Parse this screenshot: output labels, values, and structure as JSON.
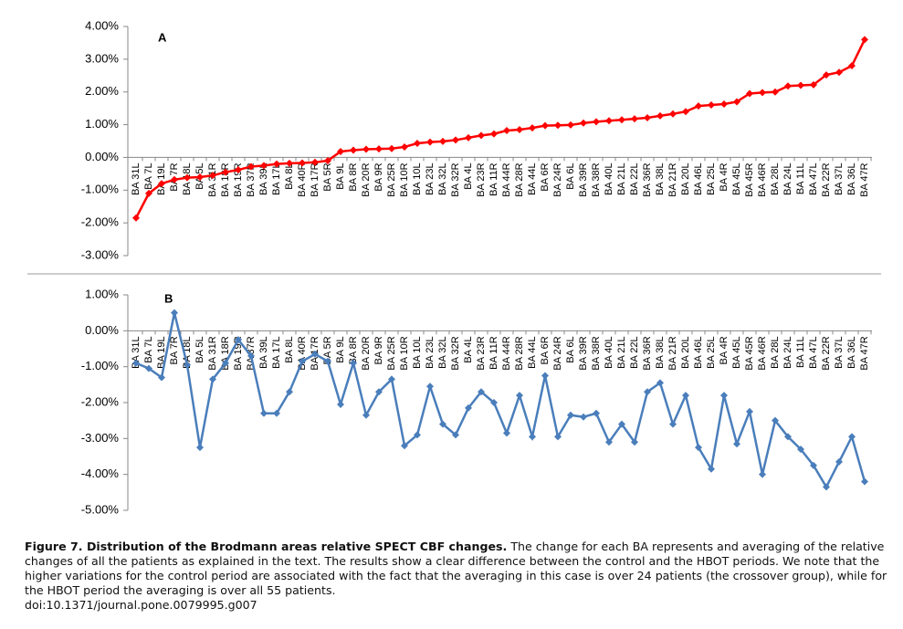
{
  "chart_data": [
    {
      "type": "line",
      "panel_label": "A",
      "color": "#ff0000",
      "categories": [
        "BA 31L",
        "BA 7L",
        "BA 19L",
        "BA 7R",
        "BA 18L",
        "BA 5L",
        "BA 31R",
        "BA 18R",
        "BA 19R",
        "BA 37R",
        "BA 39L",
        "BA 17L",
        "BA 8L",
        "BA 40R",
        "BA 17R",
        "BA 5R",
        "BA 9L",
        "BA 8R",
        "BA 20R",
        "BA 9R",
        "BA 25R",
        "BA 10R",
        "BA 10L",
        "BA 23L",
        "BA 32L",
        "BA 32R",
        "BA 4L",
        "BA 23R",
        "BA 11R",
        "BA 44R",
        "BA 28R",
        "BA 44L",
        "BA 6R",
        "BA 24R",
        "BA 6L",
        "BA 39R",
        "BA 38R",
        "BA 40L",
        "BA 21L",
        "BA 22L",
        "BA 36R",
        "BA 38L",
        "BA 21R",
        "BA 20L",
        "BA 46L",
        "BA 25L",
        "BA 4R",
        "BA 45L",
        "BA 45R",
        "BA 46R",
        "BA 28L",
        "BA 24L",
        "BA 11L",
        "BA 47L",
        "BA 22R",
        "BA 37L",
        "BA 36L",
        "BA 47R"
      ],
      "values": [
        -1.85,
        -1.1,
        -0.8,
        -0.68,
        -0.62,
        -0.6,
        -0.55,
        -0.45,
        -0.38,
        -0.28,
        -0.25,
        -0.2,
        -0.18,
        -0.17,
        -0.15,
        -0.1,
        0.18,
        0.22,
        0.25,
        0.26,
        0.27,
        0.32,
        0.43,
        0.47,
        0.49,
        0.53,
        0.6,
        0.67,
        0.72,
        0.82,
        0.85,
        0.9,
        0.97,
        0.98,
        0.99,
        1.05,
        1.09,
        1.12,
        1.15,
        1.18,
        1.21,
        1.27,
        1.33,
        1.4,
        1.57,
        1.6,
        1.63,
        1.7,
        1.95,
        1.98,
        2.0,
        2.18,
        2.2,
        2.22,
        2.52,
        2.6,
        2.8,
        3.6
      ],
      "ylim": [
        -3,
        4
      ],
      "yticks": [
        {
          "value": 4,
          "label": "4.00%"
        },
        {
          "value": 3,
          "label": "3.00%"
        },
        {
          "value": 2,
          "label": "2.00%"
        },
        {
          "value": 1,
          "label": "1.00%"
        },
        {
          "value": 0,
          "label": "0.00%"
        },
        {
          "value": -1,
          "label": "-1.00%"
        },
        {
          "value": -2,
          "label": "-2.00%"
        },
        {
          "value": -3,
          "label": "-3.00%"
        }
      ]
    },
    {
      "type": "line",
      "panel_label": "B",
      "color": "#4a7ebb",
      "categories": [
        "BA 31L",
        "BA 7L",
        "BA 19L",
        "BA 7R",
        "BA 18L",
        "BA 5L",
        "BA 31R",
        "BA 18R",
        "BA 19R",
        "BA 37R",
        "BA 39L",
        "BA 17L",
        "BA 8L",
        "BA 40R",
        "BA 17R",
        "BA 5R",
        "BA 9L",
        "BA 8R",
        "BA 20R",
        "BA 9R",
        "BA 25R",
        "BA 10R",
        "BA 10L",
        "BA 23L",
        "BA 32L",
        "BA 32R",
        "BA 4L",
        "BA 23R",
        "BA 11R",
        "BA 44R",
        "BA 28R",
        "BA 44L",
        "BA 6R",
        "BA 24R",
        "BA 6L",
        "BA 39R",
        "BA 38R",
        "BA 40L",
        "BA 21L",
        "BA 22L",
        "BA 36R",
        "BA 38L",
        "BA 21R",
        "BA 20L",
        "BA 46L",
        "BA 25L",
        "BA 4R",
        "BA 45L",
        "BA 45R",
        "BA 46R",
        "BA 28L",
        "BA 24L",
        "BA 11L",
        "BA 47L",
        "BA 22R",
        "BA 37L",
        "BA 36L",
        "BA 47R"
      ],
      "values": [
        -0.9,
        -1.05,
        -1.3,
        0.5,
        -0.95,
        -3.25,
        -1.35,
        -0.9,
        -0.25,
        -0.7,
        -2.3,
        -2.3,
        -1.7,
        -0.85,
        -0.65,
        -0.85,
        -2.05,
        -0.9,
        -2.35,
        -1.7,
        -1.35,
        -3.2,
        -2.9,
        -1.55,
        -2.6,
        -2.9,
        -2.15,
        -1.7,
        -2.0,
        -2.85,
        -1.8,
        -2.95,
        -1.25,
        -2.95,
        -2.35,
        -2.4,
        -2.3,
        -3.1,
        -2.6,
        -3.1,
        -1.7,
        -1.45,
        -2.6,
        -1.8,
        -3.25,
        -3.85,
        -1.8,
        -3.15,
        -2.25,
        -4.0,
        -2.5,
        -2.95,
        -3.3,
        -3.75,
        -4.35,
        -3.65,
        -2.95,
        -4.2
      ],
      "ylim": [
        -5,
        1
      ],
      "yticks": [
        {
          "value": 1,
          "label": "1.00%"
        },
        {
          "value": 0,
          "label": "0.00%"
        },
        {
          "value": -1,
          "label": "-1.00%"
        },
        {
          "value": -2,
          "label": "-2.00%"
        },
        {
          "value": -3,
          "label": "-3.00%"
        },
        {
          "value": -4,
          "label": "-4.00%"
        },
        {
          "value": -5,
          "label": "-5.00%"
        }
      ]
    }
  ],
  "caption": {
    "title": "Figure 7. Distribution of the Brodmann areas relative SPECT CBF changes.",
    "text": "The change for each BA represents and averaging of the relative changes of all the patients as explained in the text. The results show a clear difference between the control and the HBOT periods. We note that the higher variations for the control period are associated with the fact that the averaging in this case is over 24 patients (the crossover group), while for the HBOT period the averaging is over all 55 patients.",
    "doi": "doi:10.1371/journal.pone.0079995.g007"
  }
}
